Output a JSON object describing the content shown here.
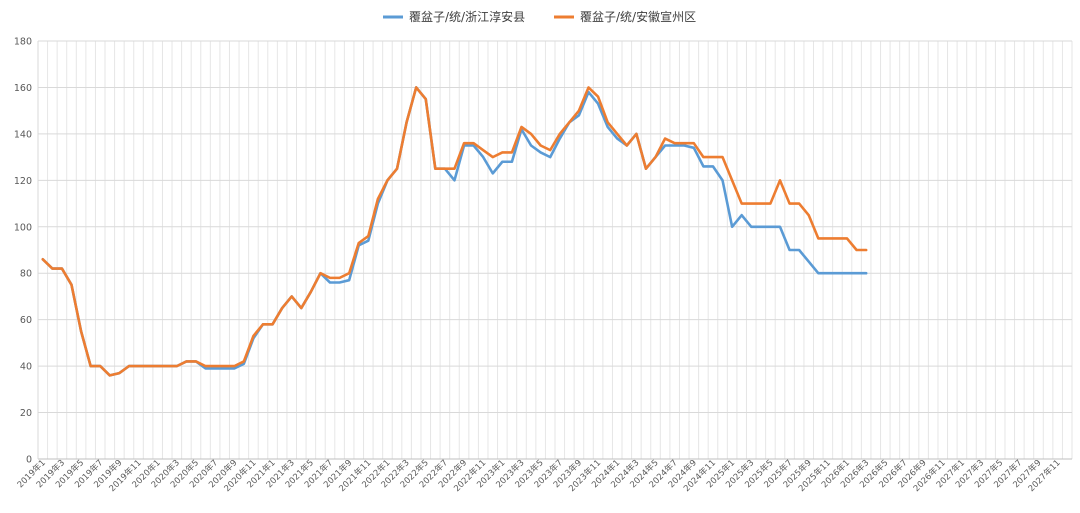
{
  "chart_data": {
    "type": "line",
    "title": "",
    "xlabel": "",
    "ylabel": "",
    "ylim": [
      0,
      180
    ],
    "yticks": [
      0,
      20,
      40,
      60,
      80,
      100,
      120,
      140,
      160,
      180
    ],
    "grid": true,
    "legend": "top-center",
    "x_tick_labels": [
      "2019年1",
      "2019年3",
      "2019年5",
      "2019年7",
      "2019年9",
      "2019年11",
      "2020年1",
      "2020年3",
      "2020年5",
      "2020年7",
      "2020年9",
      "2020年11",
      "2021年1",
      "2021年3",
      "2021年5",
      "2021年7",
      "2021年9",
      "2021年11",
      "2022年1",
      "2022年3",
      "2022年5",
      "2022年7",
      "2022年9",
      "2022年11",
      "2023年1",
      "2023年3",
      "2023年5",
      "2023年7",
      "2023年9",
      "2023年11",
      "2024年1",
      "2024年3",
      "2024年5",
      "2024年7",
      "2024年9",
      "2024年11",
      "2025年1",
      "2025年3",
      "2025年5",
      "2025年7",
      "2025年9",
      "2025年11",
      "2026年1",
      "2026年3",
      "2026年5",
      "2026年7",
      "2026年9",
      "2026年11",
      "2027年1",
      "2027年3",
      "2027年5",
      "2027年7",
      "2027年9",
      "2027年11"
    ],
    "series": [
      {
        "name": "覆盆子/统/浙江淳安县",
        "color": "#5b9bd5",
        "values": [
          86,
          82,
          82,
          75,
          55,
          40,
          40,
          36,
          37,
          40,
          40,
          40,
          40,
          40,
          40,
          42,
          42,
          39,
          39,
          39,
          39,
          41,
          52,
          58,
          58,
          65,
          70,
          65,
          72,
          80,
          76,
          76,
          77,
          92,
          94,
          110,
          120,
          125,
          145,
          160,
          155,
          125,
          125,
          120,
          135,
          135,
          130,
          123,
          128,
          128,
          142,
          135,
          132,
          130,
          138,
          145,
          148,
          158,
          153,
          143,
          138,
          135,
          140,
          125,
          130,
          135,
          135,
          135,
          134,
          126,
          126,
          120,
          100,
          105,
          100,
          100,
          100,
          100,
          90,
          90,
          85,
          80,
          80,
          80,
          80,
          80,
          80
        ]
      },
      {
        "name": "覆盆子/统/安徽宣州区",
        "color": "#ed7d31",
        "values": [
          86,
          82,
          82,
          75,
          55,
          40,
          40,
          36,
          37,
          40,
          40,
          40,
          40,
          40,
          40,
          42,
          42,
          40,
          40,
          40,
          40,
          42,
          53,
          58,
          58,
          65,
          70,
          65,
          72,
          80,
          78,
          78,
          80,
          93,
          96,
          112,
          120,
          125,
          145,
          160,
          155,
          125,
          125,
          125,
          136,
          136,
          133,
          130,
          132,
          132,
          143,
          140,
          135,
          133,
          140,
          145,
          150,
          160,
          156,
          145,
          140,
          135,
          140,
          125,
          130,
          138,
          136,
          136,
          136,
          130,
          130,
          130,
          120,
          110,
          110,
          110,
          110,
          120,
          110,
          110,
          105,
          95,
          95,
          95,
          95,
          90,
          90
        ]
      }
    ]
  }
}
